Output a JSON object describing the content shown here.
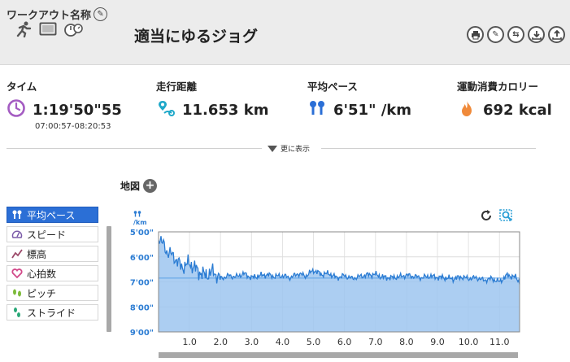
{
  "header": {
    "section_title": "ワークアウト名称",
    "workout_name": "適当にゆるジョグ",
    "activity_icons": [
      "runner-icon",
      "treadmill-icon",
      "stopwatch-icon"
    ],
    "tool_icons": [
      "print-icon",
      "edit-icon",
      "swap-icon",
      "download-icon",
      "export-icon"
    ]
  },
  "stats": {
    "time": {
      "label": "タイム",
      "value": "1:19'50\"55",
      "sub": "07:00:57-08:20:53"
    },
    "distance": {
      "label": "走行距離",
      "value": "11.653 km"
    },
    "pace": {
      "label": "平均ペース",
      "value": "6'51\" /km"
    },
    "calories": {
      "label": "運動消費カロリー",
      "value": "692 kcal"
    }
  },
  "more_label": "更に表示",
  "map": {
    "label": "地図"
  },
  "metrics": [
    {
      "label": "平均ペース",
      "icon": "pace-icon",
      "active": true
    },
    {
      "label": "スピード",
      "icon": "speedometer-icon",
      "active": false
    },
    {
      "label": "標高",
      "icon": "elevation-icon",
      "active": false
    },
    {
      "label": "心拍数",
      "icon": "heart-icon",
      "active": false
    },
    {
      "label": "ピッチ",
      "icon": "footsteps-icon",
      "active": false
    },
    {
      "label": "ストライド",
      "icon": "stride-icon",
      "active": false
    }
  ],
  "colors": {
    "accent": "#2b6fd6",
    "chart_line": "#2b7cd3",
    "chart_fill": "#9dc6f0",
    "avg_line": "#5aa0e6"
  },
  "chart_data": {
    "type": "area",
    "ylabel_unit": "/km",
    "y_ticks": [
      "5'00\"",
      "6'00\"",
      "7'00\"",
      "8'00\"",
      "9'00\""
    ],
    "y_tick_seconds": [
      300,
      360,
      420,
      480,
      540
    ],
    "ylim": [
      300,
      540
    ],
    "y_inverted": true,
    "x_ticks": [
      "1.0",
      "2.0",
      "3.0",
      "4.0",
      "5.0",
      "6.0",
      "7.0",
      "8.0",
      "9.0",
      "10.0",
      "11.0"
    ],
    "xlim": [
      0,
      11.65
    ],
    "average_pace_seconds": 411,
    "grid": true,
    "x": [
      0,
      0.25,
      0.5,
      0.75,
      1.0,
      1.25,
      1.5,
      1.75,
      2.0,
      2.25,
      2.5,
      2.75,
      3.0,
      3.25,
      3.5,
      3.75,
      4.0,
      4.25,
      4.5,
      4.75,
      5.0,
      5.25,
      5.5,
      5.75,
      6.0,
      6.25,
      6.5,
      6.75,
      7.0,
      7.25,
      7.5,
      7.75,
      8.0,
      8.25,
      8.5,
      8.75,
      9.0,
      9.25,
      9.5,
      9.75,
      10.0,
      10.25,
      10.5,
      10.75,
      11.0,
      11.25,
      11.5,
      11.65
    ],
    "y": [
      310,
      345,
      360,
      385,
      375,
      392,
      405,
      395,
      412,
      405,
      408,
      400,
      410,
      405,
      403,
      407,
      405,
      410,
      400,
      406,
      392,
      402,
      400,
      410,
      405,
      412,
      407,
      403,
      402,
      409,
      410,
      408,
      404,
      407,
      410,
      406,
      409,
      410,
      413,
      408,
      412,
      410,
      416,
      412,
      420,
      404,
      408,
      420
    ]
  }
}
